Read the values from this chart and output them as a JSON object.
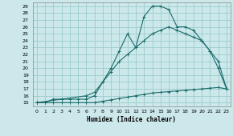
{
  "xlabel": "Humidex (Indice chaleur)",
  "bg_color": "#cce8ea",
  "grid_color": "#99cccc",
  "line_color": "#1a6b6b",
  "xlim": [
    -0.5,
    23.5
  ],
  "ylim": [
    14.5,
    29.5
  ],
  "xticks": [
    0,
    1,
    2,
    3,
    4,
    5,
    6,
    7,
    8,
    9,
    10,
    11,
    12,
    13,
    14,
    15,
    16,
    17,
    18,
    19,
    20,
    21,
    22,
    23
  ],
  "yticks": [
    15,
    16,
    17,
    18,
    19,
    20,
    21,
    22,
    23,
    24,
    25,
    26,
    27,
    28,
    29
  ],
  "curve1_x": [
    0,
    1,
    2,
    3,
    4,
    5,
    6,
    7,
    8,
    9,
    10,
    11,
    12,
    13,
    14,
    15,
    16,
    17,
    18,
    19,
    20,
    21,
    22,
    23
  ],
  "curve1_y": [
    15,
    15,
    15.5,
    15.5,
    15.5,
    15.5,
    15.5,
    16,
    18,
    20,
    22.5,
    25,
    23,
    27.5,
    29,
    29,
    28.5,
    26,
    26,
    25.5,
    24,
    22.5,
    20,
    17
  ],
  "curve2_x": [
    0,
    3,
    6,
    7,
    8,
    9,
    10,
    11,
    12,
    13,
    14,
    15,
    16,
    17,
    18,
    19,
    20,
    21,
    22,
    23
  ],
  "curve2_y": [
    15,
    15.5,
    16,
    16.5,
    18,
    19.5,
    21,
    22,
    23,
    24,
    25,
    25.5,
    26,
    25.5,
    25,
    24.5,
    24,
    22.5,
    21,
    17
  ],
  "curve3_x": [
    0,
    1,
    2,
    3,
    4,
    5,
    6,
    7,
    8,
    9,
    10,
    11,
    12,
    13,
    14,
    15,
    16,
    17,
    18,
    19,
    20,
    21,
    22,
    23
  ],
  "curve3_y": [
    15,
    15,
    15,
    15,
    15,
    15,
    15,
    15,
    15.2,
    15.4,
    15.6,
    15.8,
    16.0,
    16.2,
    16.4,
    16.5,
    16.6,
    16.7,
    16.8,
    16.9,
    17.0,
    17.1,
    17.2,
    17.0
  ]
}
